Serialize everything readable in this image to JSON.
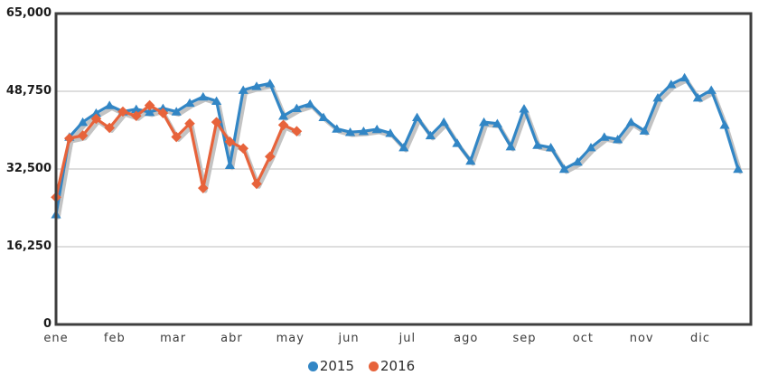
{
  "chart_data": {
    "type": "line",
    "title": "",
    "xlabel": "",
    "ylabel": "",
    "grid": "horizontal",
    "legend_position": "bottom-center",
    "x_axis": {
      "categories": [
        "ene",
        "feb",
        "mar",
        "abr",
        "may",
        "jun",
        "jul",
        "ago",
        "sep",
        "oct",
        "nov",
        "dic"
      ]
    },
    "y_axis": {
      "min": 0,
      "max": 65000,
      "tick_labels": [
        "65,000",
        "48,750",
        "32,500",
        "16,250",
        "0"
      ],
      "tick_values": [
        65000,
        48750,
        32500,
        16250,
        0
      ]
    },
    "series": [
      {
        "name": "2015",
        "color": "#3286c5",
        "marker": "triangle",
        "frequency": "weekly",
        "values": [
          23000,
          39200,
          42300,
          44200,
          45800,
          44500,
          45000,
          44400,
          45200,
          44500,
          46300,
          47600,
          46700,
          33300,
          49000,
          49800,
          50400,
          43600,
          45200,
          46100,
          43300,
          40900,
          40200,
          40400,
          40800,
          40000,
          37000,
          43300,
          39500,
          42300,
          37900,
          34200,
          42300,
          42000,
          37200,
          45100,
          37500,
          37000,
          32500,
          34000,
          37000,
          39200,
          38700,
          42300,
          40500,
          47400,
          50200,
          51600,
          47400,
          49000,
          41700,
          32500
        ]
      },
      {
        "name": "2016",
        "color": "#e7633b",
        "marker": "diamond",
        "frequency": "weekly",
        "values": [
          26600,
          38900,
          39500,
          43000,
          41100,
          44500,
          43600,
          45800,
          44200,
          39200,
          42000,
          28500,
          42300,
          38200,
          36800,
          29400,
          35100,
          41700,
          40400
        ]
      }
    ],
    "colors": {
      "plot_border": "#3e3e3e",
      "gridline": "#c9c9c9",
      "line_shadow": "#c3c3c3",
      "tick_text": "#1c1c1c"
    }
  }
}
